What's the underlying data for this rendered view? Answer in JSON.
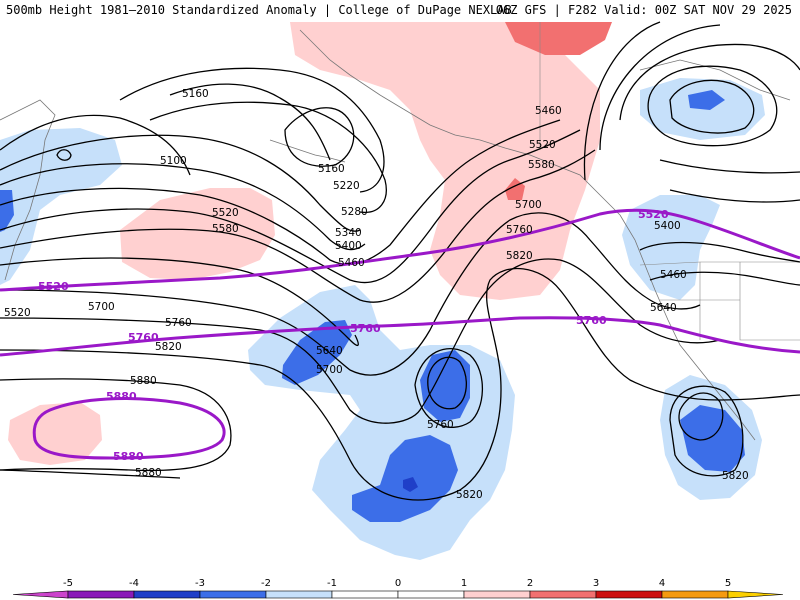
{
  "header": {
    "title_left": "500mb Height 1981–2010 Standardized Anomaly | College of DuPage NEXLAB",
    "title_right": "06Z GFS | F282 Valid: 00Z SAT NOV 29 2025"
  },
  "colors": {
    "anom_neg5": "#cc44cc",
    "anom_neg4": "#8a1ab8",
    "anom_neg3": "#1f3fc8",
    "anom_neg2": "#3c6ee8",
    "anom_neg1": "#c6e0fa",
    "anom_pos1": "#ffd0d0",
    "anom_pos2": "#f27070",
    "anom_pos3": "#cc1010",
    "anom_pos4": "#f59a10",
    "anom_pos5": "#fcd000",
    "height_contour": "#000000",
    "reference_contour": "#9a18c8"
  },
  "legend": {
    "ticks": [
      "-5",
      "-4",
      "-3",
      "-2",
      "-1",
      "0",
      "1",
      "2",
      "3",
      "4",
      "5"
    ]
  },
  "contour_labels": [
    {
      "id": "l5160a",
      "text": "5160"
    },
    {
      "id": "l5100",
      "text": "5100"
    },
    {
      "id": "l5160b",
      "text": "5160"
    },
    {
      "id": "l5220a",
      "text": "5220"
    },
    {
      "id": "l5280",
      "text": "5280"
    },
    {
      "id": "l5340",
      "text": "5340"
    },
    {
      "id": "l5400a",
      "text": "5400"
    },
    {
      "id": "l5460a",
      "text": "5460"
    },
    {
      "id": "l5520a",
      "text": "5520"
    },
    {
      "id": "l5580a",
      "text": "5580"
    },
    {
      "id": "l5460b",
      "text": "5460"
    },
    {
      "id": "l5520b",
      "text": "5520"
    },
    {
      "id": "l5580b",
      "text": "5580"
    },
    {
      "id": "l5700a",
      "text": "5700"
    },
    {
      "id": "l5760a",
      "text": "5760"
    },
    {
      "id": "l5820a",
      "text": "5820"
    },
    {
      "id": "l5400b",
      "text": "5400"
    },
    {
      "id": "l5460c",
      "text": "5460"
    },
    {
      "id": "l5640a",
      "text": "5640"
    },
    {
      "id": "l5520c",
      "text": "5520"
    },
    {
      "id": "l5700b",
      "text": "5700"
    },
    {
      "id": "l5760b",
      "text": "5760"
    },
    {
      "id": "l5820b",
      "text": "5820"
    },
    {
      "id": "l5640b",
      "text": "5640"
    },
    {
      "id": "l5700c",
      "text": "5700"
    },
    {
      "id": "l5880a",
      "text": "5880"
    },
    {
      "id": "l5880b",
      "text": "5880"
    },
    {
      "id": "l5760c",
      "text": "5760"
    },
    {
      "id": "l5820c",
      "text": "5820"
    },
    {
      "id": "l5820d",
      "text": "5820"
    }
  ],
  "reference_labels": [
    {
      "id": "r5520a",
      "text": "5520"
    },
    {
      "id": "r5520b",
      "text": "5520"
    },
    {
      "id": "r5760a",
      "text": "5760"
    },
    {
      "id": "r5760b",
      "text": "5760"
    },
    {
      "id": "r5760c",
      "text": "5760"
    },
    {
      "id": "r5880a",
      "text": "5880"
    },
    {
      "id": "r5880b",
      "text": "5880"
    }
  ]
}
